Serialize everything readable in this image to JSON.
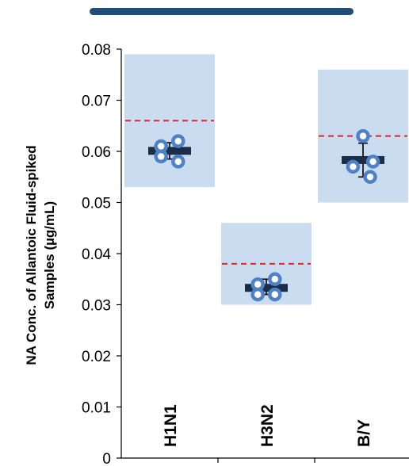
{
  "colors": {
    "header_bar": "#1f4e79",
    "range_box": "#c9dcf0",
    "target_line": "#e0262b",
    "mean_bar": "#1a2e48",
    "marker": "#4f81c7"
  },
  "chart_data": {
    "type": "scatter",
    "title": "",
    "ylabel_lines": [
      "NA Conc. of Allantoic Fluid-spiked",
      "Samples (µg/mL)"
    ],
    "xlabel": "",
    "ylim": [
      0,
      0.08
    ],
    "yticks": [
      0,
      0.01,
      0.02,
      0.03,
      0.04,
      0.05,
      0.06,
      0.07,
      0.08
    ],
    "ytick_labels": [
      "0",
      "0.01",
      "0.02",
      "0.03",
      "0.04",
      "0.05",
      "0.06",
      "0.07",
      "0.08"
    ],
    "grid": false,
    "categories": [
      {
        "name": "H1N1",
        "range": [
          0.053,
          0.079
        ],
        "target": 0.066,
        "mean": 0.0601,
        "error": [
          0.0585,
          0.0617
        ],
        "points": [
          {
            "offset": -0.6,
            "value": 0.061
          },
          {
            "offset": 0.6,
            "value": 0.062
          },
          {
            "offset": -0.6,
            "value": 0.059
          },
          {
            "offset": 0.6,
            "value": 0.058
          }
        ]
      },
      {
        "name": "H3N2",
        "range": [
          0.03,
          0.046
        ],
        "target": 0.038,
        "mean": 0.0333,
        "error": [
          0.032,
          0.035
        ],
        "points": [
          {
            "offset": -0.6,
            "value": 0.034
          },
          {
            "offset": 0.6,
            "value": 0.035
          },
          {
            "offset": -0.6,
            "value": 0.032
          },
          {
            "offset": 0.6,
            "value": 0.032
          }
        ]
      },
      {
        "name": "B/Y",
        "range": [
          0.05,
          0.076
        ],
        "target": 0.063,
        "mean": 0.0583,
        "error": [
          0.055,
          0.0616
        ],
        "points": [
          {
            "offset": 0.0,
            "value": 0.063
          },
          {
            "offset": -0.7,
            "value": 0.057
          },
          {
            "offset": 0.7,
            "value": 0.058
          },
          {
            "offset": 0.5,
            "value": 0.055
          }
        ]
      }
    ]
  }
}
